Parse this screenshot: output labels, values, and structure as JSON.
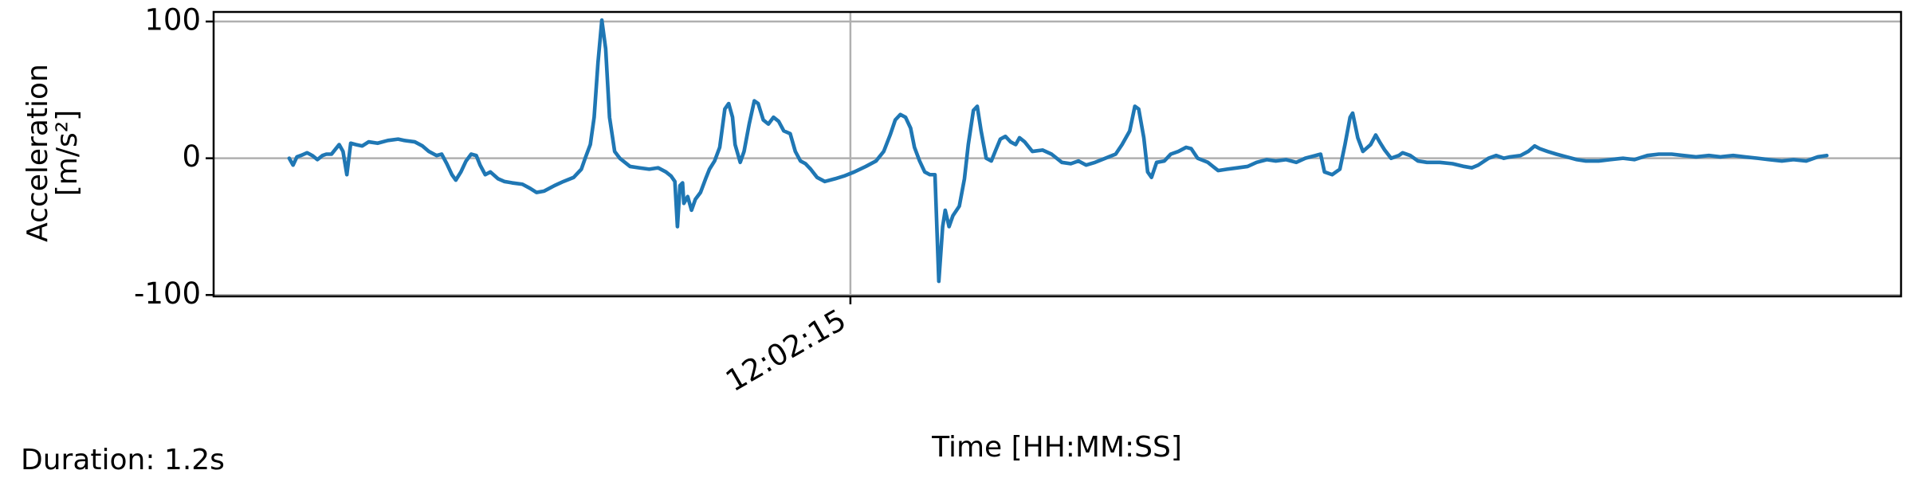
{
  "chart_data": {
    "type": "line",
    "ylabel": [
      "Acceleration",
      "[m/s²]"
    ],
    "xlabel": "Time [HH:MM:SS]",
    "annotation": "Duration: 1.2s",
    "color": "#1f77b4",
    "grid": true,
    "xlim": [
      43334.503,
      43335.82
    ],
    "ylim": [
      -101,
      107
    ],
    "xticks": [
      {
        "value": 43335,
        "label": "12:02:15"
      }
    ],
    "yticks": [
      -100,
      0,
      100
    ],
    "x": [
      43334.562,
      43334.565,
      43334.568,
      43334.571,
      43334.576,
      43334.58,
      43334.584,
      43334.588,
      43334.591,
      43334.595,
      43334.601,
      43334.604,
      43334.607,
      43334.61,
      43334.614,
      43334.619,
      43334.624,
      43334.631,
      43334.639,
      43334.647,
      43334.652,
      43334.66,
      43334.666,
      43334.671,
      43334.677,
      43334.681,
      43334.685,
      43334.689,
      43334.692,
      43334.696,
      43334.7,
      43334.704,
      43334.708,
      43334.711,
      43334.715,
      43334.719,
      43334.725,
      43334.73,
      43334.736,
      43334.744,
      43334.75,
      43334.755,
      43334.761,
      43334.769,
      43334.776,
      43334.784,
      43334.79,
      43334.793,
      43334.797,
      43334.8,
      43334.803,
      43334.806,
      43334.809,
      43334.812,
      43334.816,
      43334.82,
      43334.828,
      43334.835,
      43334.843,
      43334.85,
      43334.856,
      43334.86,
      43334.863,
      43334.865,
      43334.867,
      43334.869,
      43334.87,
      43334.873,
      43334.876,
      43334.879,
      43334.883,
      43334.887,
      43334.89,
      43334.894,
      43334.898,
      43334.902,
      43334.905,
      43334.908,
      43334.91,
      43334.914,
      43334.917,
      43334.921,
      43334.925,
      43334.928,
      43334.932,
      43334.936,
      43334.94,
      43334.944,
      43334.948,
      43334.953,
      43334.957,
      43334.961,
      43334.965,
      43334.969,
      43334.974,
      43334.98,
      43334.988,
      43334.995,
      43335.003,
      43335.012,
      43335.02,
      43335.026,
      43335.031,
      43335.035,
      43335.039,
      43335.043,
      43335.047,
      43335.05,
      43335.054,
      43335.058,
      43335.062,
      43335.066,
      43335.069,
      43335.072,
      43335.074,
      43335.077,
      43335.08,
      43335.085,
      43335.089,
      43335.092,
      43335.096,
      43335.099,
      43335.102,
      43335.106,
      43335.11,
      43335.113,
      43335.117,
      43335.121,
      43335.125,
      43335.129,
      43335.132,
      43335.136,
      43335.142,
      43335.15,
      43335.157,
      43335.165,
      43335.172,
      43335.178,
      43335.184,
      43335.191,
      43335.199,
      43335.207,
      43335.212,
      43335.218,
      43335.222,
      43335.225,
      43335.229,
      43335.232,
      43335.235,
      43335.239,
      43335.245,
      43335.25,
      43335.256,
      43335.262,
      43335.266,
      43335.271,
      43335.279,
      43335.287,
      43335.294,
      43335.302,
      43335.31,
      43335.317,
      43335.325,
      43335.332,
      43335.34,
      43335.348,
      43335.355,
      43335.363,
      43335.367,
      43335.37,
      43335.376,
      43335.382,
      43335.386,
      43335.39,
      43335.392,
      43335.396,
      43335.4,
      43335.406,
      43335.41,
      43335.413,
      43335.417,
      43335.422,
      43335.428,
      43335.431,
      43335.437,
      43335.443,
      43335.45,
      43335.46,
      43335.47,
      43335.479,
      43335.485,
      43335.49,
      43335.498,
      43335.504,
      43335.51,
      43335.515,
      43335.523,
      43335.529,
      43335.534,
      43335.538,
      43335.544,
      43335.551,
      43335.559,
      43335.567,
      43335.574,
      43335.584,
      43335.593,
      43335.603,
      43335.612,
      43335.622,
      43335.631,
      43335.641,
      43335.65,
      43335.66,
      43335.67,
      43335.679,
      43335.689,
      43335.698,
      43335.708,
      43335.717,
      43335.727,
      43335.736,
      43335.746,
      43335.755,
      43335.762
    ],
    "values": [
      0,
      -5,
      1,
      2,
      4,
      2,
      -1,
      2,
      3,
      3,
      10,
      5,
      -12,
      11,
      10,
      9,
      12,
      11,
      13,
      14,
      13,
      12,
      9,
      5,
      2,
      3,
      -4,
      -12,
      -16,
      -10,
      -2,
      3,
      2,
      -5,
      -12,
      -10,
      -15,
      -17,
      -18,
      -19,
      -22,
      -25,
      -24,
      -20,
      -17,
      -14,
      -8,
      0,
      10,
      30,
      70,
      101,
      80,
      30,
      5,
      0,
      -6,
      -7,
      -8,
      -7,
      -10,
      -13,
      -17,
      -50,
      -20,
      -18,
      -33,
      -28,
      -38,
      -30,
      -25,
      -15,
      -8,
      -2,
      8,
      36,
      40,
      30,
      10,
      -3,
      5,
      25,
      42,
      40,
      28,
      25,
      30,
      27,
      20,
      18,
      5,
      -2,
      -4,
      -8,
      -14,
      -17,
      -15,
      -13,
      -10,
      -6,
      -2,
      5,
      17,
      28,
      32,
      30,
      22,
      8,
      -2,
      -10,
      -12,
      -12,
      -90,
      -50,
      -38,
      -50,
      -42,
      -35,
      -15,
      10,
      35,
      38,
      20,
      0,
      -2,
      5,
      14,
      16,
      12,
      10,
      15,
      12,
      5,
      6,
      3,
      -3,
      -4,
      -2,
      -5,
      -3,
      0,
      3,
      10,
      20,
      38,
      36,
      15,
      -10,
      -14,
      -3,
      -2,
      3,
      5,
      8,
      7,
      0,
      -3,
      -9,
      -8,
      -7,
      -6,
      -3,
      -1,
      -2,
      -1,
      -3,
      0,
      2,
      3,
      -10,
      -12,
      -8,
      10,
      30,
      33,
      15,
      5,
      10,
      17,
      12,
      6,
      0,
      2,
      4,
      2,
      -2,
      -3,
      -3,
      -4,
      -6,
      -7,
      -5,
      0,
      2,
      0,
      1,
      2,
      5,
      9,
      7,
      5,
      3,
      1,
      -1,
      -2,
      -2,
      -1,
      0,
      -1,
      2,
      3,
      3,
      2,
      1,
      2,
      1,
      2,
      1,
      0,
      -1,
      -2,
      -1,
      -2,
      1,
      2
    ]
  }
}
